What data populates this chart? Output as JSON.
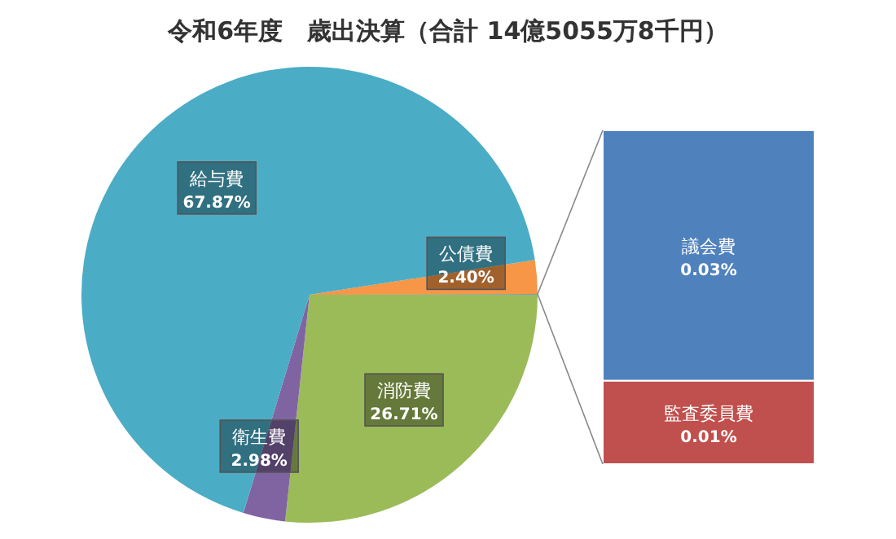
{
  "chart_data": [
    {
      "type": "pie",
      "title": "令和6年度　歳出決算（合計 14億5055万8千円）",
      "categories": [
        "公債費",
        null,
        "消防費",
        "衛生費",
        "給与費"
      ],
      "values": [
        2.4,
        0.04,
        26.71,
        2.98,
        67.87
      ],
      "colors": [
        "#f79646",
        "#4f81bd",
        "#9bbb59",
        "#8064a2",
        "#4bacc6"
      ],
      "value_labels": [
        "2.40%",
        null,
        "26.71%",
        "2.98%",
        "67.87%"
      ]
    },
    {
      "type": "bar",
      "stacked": true,
      "categories": [
        null
      ],
      "series": [
        {
          "name": "監査委員費",
          "color": "#c0504d",
          "values": [
            0.01
          ],
          "value_labels": [
            "0.01%"
          ]
        },
        {
          "name": "議会費",
          "color": "#4f81bd",
          "values": [
            0.03
          ],
          "value_labels": [
            "0.03%"
          ]
        }
      ]
    }
  ]
}
